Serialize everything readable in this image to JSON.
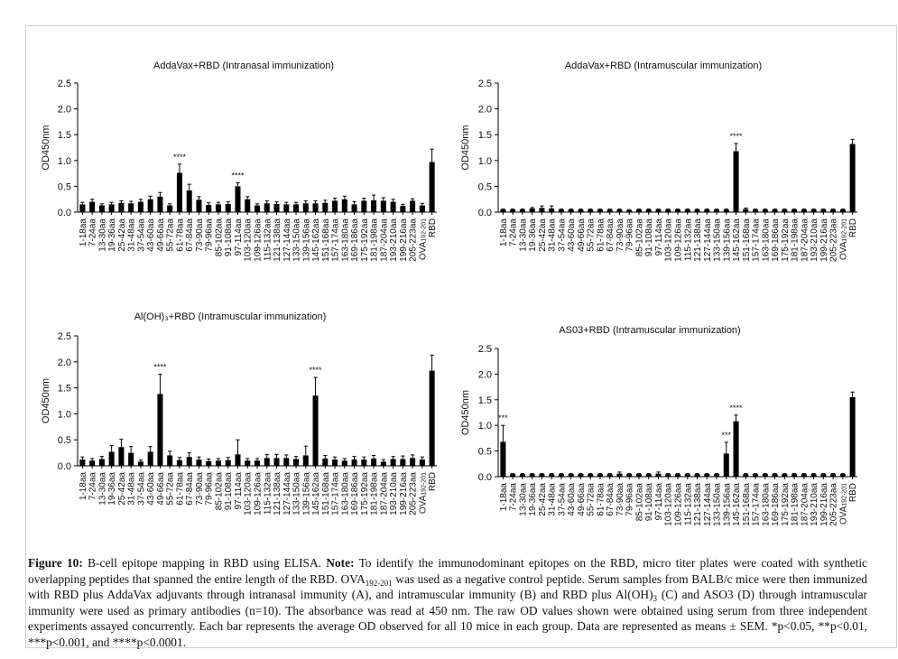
{
  "figure": {
    "panels": [
      {
        "title": "AddaVax+RBD (Intranasal immunization)"
      },
      {
        "title": "AddaVax+RBD (Intramuscular immunization)"
      },
      {
        "title": "Al(OH)₃+RBD (Intramuscular immunization)"
      },
      {
        "title": "AS03+RBD (Intramuscular immunization)"
      }
    ]
  },
  "caption": {
    "label": "Figure 10:",
    "title": " B-cell epitope mapping in RBD using ELISA. ",
    "note_label": "Note:",
    "s1": " To identify the immunodominant epitopes on the RBD, micro titer plates were coated with synthetic overlapping peptides that spanned the entire length of the RBD. OVA",
    "s1_sub": "192-201",
    "s2": " was used as a negative control peptide. Serum samples from BALB/c mice were then immunized with RBD plus AddaVax adjuvants through intranasal immunity (A), and intramuscular immunity (B) and RBD plus Al(OH)",
    "s2_sub": "3",
    "s3": " (C) and ASO3 (D) through intramuscular immunity were used as primary antibodies (n=10). The absorbance was read at 450 nm. The raw OD values shown were obtained using serum from three independent experiments assayed concurrently. Each bar represents the average OD observed for all 10 mice in each group. Data are represented as means ± SEM. *p<0.05, **p<0.01, ***p<0.001, and ****p<0.0001."
  },
  "chart_data": [
    {
      "type": "bar",
      "title": "AddaVax+RBD (Intranasal immunization)",
      "xlabel": "",
      "ylabel": "OD450nm",
      "ylim": [
        0,
        2.5
      ],
      "yticks": [
        "0.0",
        "0.5",
        "1.0",
        "1.5",
        "2.0",
        "2.5"
      ],
      "categories": [
        "1-18aa",
        "7-24aa",
        "13-30aa",
        "19-36aa",
        "25-42aa",
        "31-48aa",
        "37-54aa",
        "43-60aa",
        "49-66aa",
        "55-72aa",
        "61-78aa",
        "67-84aa",
        "73-90aa",
        "79-96aa",
        "85-102aa",
        "91-108aa",
        "97-114aa",
        "103-120aa",
        "109-126aa",
        "115-132aa",
        "121-138aa",
        "127-144aa",
        "133-150aa",
        "139-156aa",
        "145-162aa",
        "151-168aa",
        "157-174aa",
        "163-180aa",
        "169-186aa",
        "175-192aa",
        "181-198aa",
        "187-204aa",
        "193-210aa",
        "199-216aa",
        "205-223aa",
        "OVA",
        "RBD"
      ],
      "ova_subscript": "192-201",
      "values": [
        0.15,
        0.2,
        0.13,
        0.15,
        0.18,
        0.17,
        0.2,
        0.25,
        0.3,
        0.13,
        0.76,
        0.42,
        0.24,
        0.14,
        0.15,
        0.16,
        0.5,
        0.25,
        0.13,
        0.17,
        0.16,
        0.15,
        0.15,
        0.17,
        0.17,
        0.18,
        0.22,
        0.25,
        0.15,
        0.22,
        0.23,
        0.22,
        0.2,
        0.12,
        0.22,
        0.13,
        0.97
      ],
      "errors": [
        0.04,
        0.05,
        0.03,
        0.04,
        0.04,
        0.04,
        0.05,
        0.06,
        0.08,
        0.03,
        0.17,
        0.12,
        0.06,
        0.04,
        0.04,
        0.04,
        0.07,
        0.05,
        0.03,
        0.05,
        0.04,
        0.04,
        0.04,
        0.05,
        0.05,
        0.05,
        0.05,
        0.06,
        0.05,
        0.05,
        0.1,
        0.06,
        0.05,
        0.03,
        0.04,
        0.04,
        0.25
      ],
      "annotations": [
        {
          "category": "61-78aa",
          "label": "****"
        },
        {
          "category": "97-114aa",
          "label": "****"
        }
      ]
    },
    {
      "type": "bar",
      "title": "AddaVax+RBD (Intramuscular immunization)",
      "xlabel": "",
      "ylabel": "OD450nm",
      "ylim": [
        0,
        2.5
      ],
      "yticks": [
        "0.0",
        "0.5",
        "1.0",
        "1.5",
        "2.0",
        "2.5"
      ],
      "categories": [
        "1-18aa",
        "7-24aa",
        "13-30aa",
        "19-36aa",
        "25-42aa",
        "31-48aa",
        "37-54aa",
        "43-60aa",
        "49-66aa",
        "55-72aa",
        "61-78aa",
        "67-84aa",
        "73-90aa",
        "79-96aa",
        "85-102aa",
        "91-108aa",
        "97-114aa",
        "103-120aa",
        "109-126aa",
        "115-132aa",
        "121-138aa",
        "127-144aa",
        "133-150aa",
        "139-156aa",
        "145-162aa",
        "151-168aa",
        "157-174aa",
        "163-180aa",
        "169-186aa",
        "175-192aa",
        "181-198aa",
        "187-204aa",
        "193-210aa",
        "199-216aa",
        "205-223aa",
        "OVA",
        "RBD"
      ],
      "ova_subscript": "192-201",
      "values": [
        0.05,
        0.05,
        0.05,
        0.07,
        0.08,
        0.07,
        0.05,
        0.05,
        0.05,
        0.05,
        0.05,
        0.05,
        0.05,
        0.04,
        0.05,
        0.05,
        0.05,
        0.05,
        0.05,
        0.05,
        0.05,
        0.05,
        0.05,
        0.05,
        1.18,
        0.06,
        0.05,
        0.05,
        0.05,
        0.05,
        0.05,
        0.05,
        0.05,
        0.05,
        0.05,
        0.05,
        1.32
      ],
      "errors": [
        0.01,
        0.01,
        0.01,
        0.02,
        0.04,
        0.05,
        0.01,
        0.01,
        0.01,
        0.01,
        0.01,
        0.01,
        0.01,
        0.01,
        0.01,
        0.01,
        0.01,
        0.01,
        0.01,
        0.01,
        0.01,
        0.01,
        0.01,
        0.01,
        0.15,
        0.02,
        0.01,
        0.01,
        0.01,
        0.01,
        0.01,
        0.01,
        0.01,
        0.01,
        0.01,
        0.01,
        0.09
      ],
      "annotations": [
        {
          "category": "145-162aa",
          "label": "****"
        }
      ]
    },
    {
      "type": "bar",
      "title": "Al(OH)₃+RBD (Intramuscular immunization)",
      "xlabel": "",
      "ylabel": "OD450nm",
      "ylim": [
        0,
        2.5
      ],
      "yticks": [
        "0.0",
        "0.5",
        "1.0",
        "1.5",
        "2.0",
        "2.5"
      ],
      "categories": [
        "1-18aa",
        "7-24aa",
        "13-30aa",
        "19-36aa",
        "25-42aa",
        "31-48aa",
        "37-54aa",
        "43-60aa",
        "49-66aa",
        "55-72aa",
        "61-78aa",
        "67-84aa",
        "73-90aa",
        "79-96aa",
        "85-102aa",
        "91-108aa",
        "97-114aa",
        "103-120aa",
        "109-126aa",
        "115-132aa",
        "121-138aa",
        "127-144aa",
        "133-150aa",
        "139-156aa",
        "145-162aa",
        "151-168aa",
        "157-174aa",
        "163-180aa",
        "169-186aa",
        "175-192aa",
        "181-198aa",
        "187-204aa",
        "193-210aa",
        "199-216aa",
        "205-223aa",
        "OVA",
        "RBD"
      ],
      "ova_subscript": "192-201",
      "values": [
        0.12,
        0.1,
        0.13,
        0.27,
        0.36,
        0.25,
        0.08,
        0.27,
        1.38,
        0.2,
        0.11,
        0.17,
        0.12,
        0.09,
        0.1,
        0.11,
        0.22,
        0.1,
        0.1,
        0.15,
        0.15,
        0.15,
        0.13,
        0.2,
        1.35,
        0.14,
        0.12,
        0.1,
        0.12,
        0.12,
        0.14,
        0.08,
        0.13,
        0.13,
        0.15,
        0.12,
        1.83
      ],
      "errors": [
        0.05,
        0.04,
        0.05,
        0.12,
        0.15,
        0.12,
        0.03,
        0.1,
        0.38,
        0.08,
        0.05,
        0.08,
        0.05,
        0.04,
        0.04,
        0.05,
        0.28,
        0.04,
        0.04,
        0.07,
        0.07,
        0.06,
        0.05,
        0.18,
        0.35,
        0.06,
        0.05,
        0.04,
        0.06,
        0.05,
        0.06,
        0.04,
        0.05,
        0.06,
        0.06,
        0.05,
        0.3
      ],
      "annotations": [
        {
          "category": "49-66aa",
          "label": "****"
        },
        {
          "category": "145-162aa",
          "label": "****"
        }
      ]
    },
    {
      "type": "bar",
      "title": "AS03+RBD (Intramuscular immunization)",
      "xlabel": "",
      "ylabel": "OD450nm",
      "ylim": [
        0,
        2.5
      ],
      "yticks": [
        "0.0",
        "0.5",
        "1.0",
        "1.5",
        "2.0",
        "2.5"
      ],
      "categories": [
        "1-18aa",
        "7-24aa",
        "13-30aa",
        "19-36aa",
        "25-42aa",
        "31-48aa",
        "37-54aa",
        "43-60aa",
        "49-66aa",
        "55-72aa",
        "61-78aa",
        "67-84aa",
        "73-90aa",
        "79-96aa",
        "85-102aa",
        "91-108aa",
        "97-114aa",
        "103-120aa",
        "109-126aa",
        "115-132aa",
        "121-138aa",
        "127-144aa",
        "133-150aa",
        "139-156aa",
        "145-162aa",
        "151-168aa",
        "157-174aa",
        "163-180aa",
        "169-186aa",
        "175-192aa",
        "181-198aa",
        "187-204aa",
        "193-210aa",
        "199-216aa",
        "205-223aa",
        "OVA",
        "RBD"
      ],
      "ova_subscript": "192-201",
      "values": [
        0.68,
        0.05,
        0.05,
        0.05,
        0.05,
        0.05,
        0.05,
        0.05,
        0.05,
        0.05,
        0.05,
        0.05,
        0.06,
        0.05,
        0.05,
        0.05,
        0.06,
        0.05,
        0.05,
        0.05,
        0.05,
        0.05,
        0.05,
        0.45,
        1.08,
        0.05,
        0.05,
        0.05,
        0.05,
        0.05,
        0.05,
        0.05,
        0.05,
        0.05,
        0.05,
        0.05,
        1.55
      ],
      "errors": [
        0.32,
        0.01,
        0.01,
        0.01,
        0.01,
        0.01,
        0.01,
        0.01,
        0.01,
        0.01,
        0.01,
        0.01,
        0.03,
        0.01,
        0.01,
        0.01,
        0.03,
        0.01,
        0.01,
        0.01,
        0.01,
        0.01,
        0.01,
        0.22,
        0.12,
        0.01,
        0.01,
        0.01,
        0.01,
        0.01,
        0.01,
        0.01,
        0.01,
        0.01,
        0.01,
        0.01,
        0.1
      ],
      "annotations": [
        {
          "category": "1-18aa",
          "label": "***"
        },
        {
          "category": "139-156aa",
          "label": "***"
        },
        {
          "category": "145-162aa",
          "label": "****"
        }
      ]
    }
  ]
}
